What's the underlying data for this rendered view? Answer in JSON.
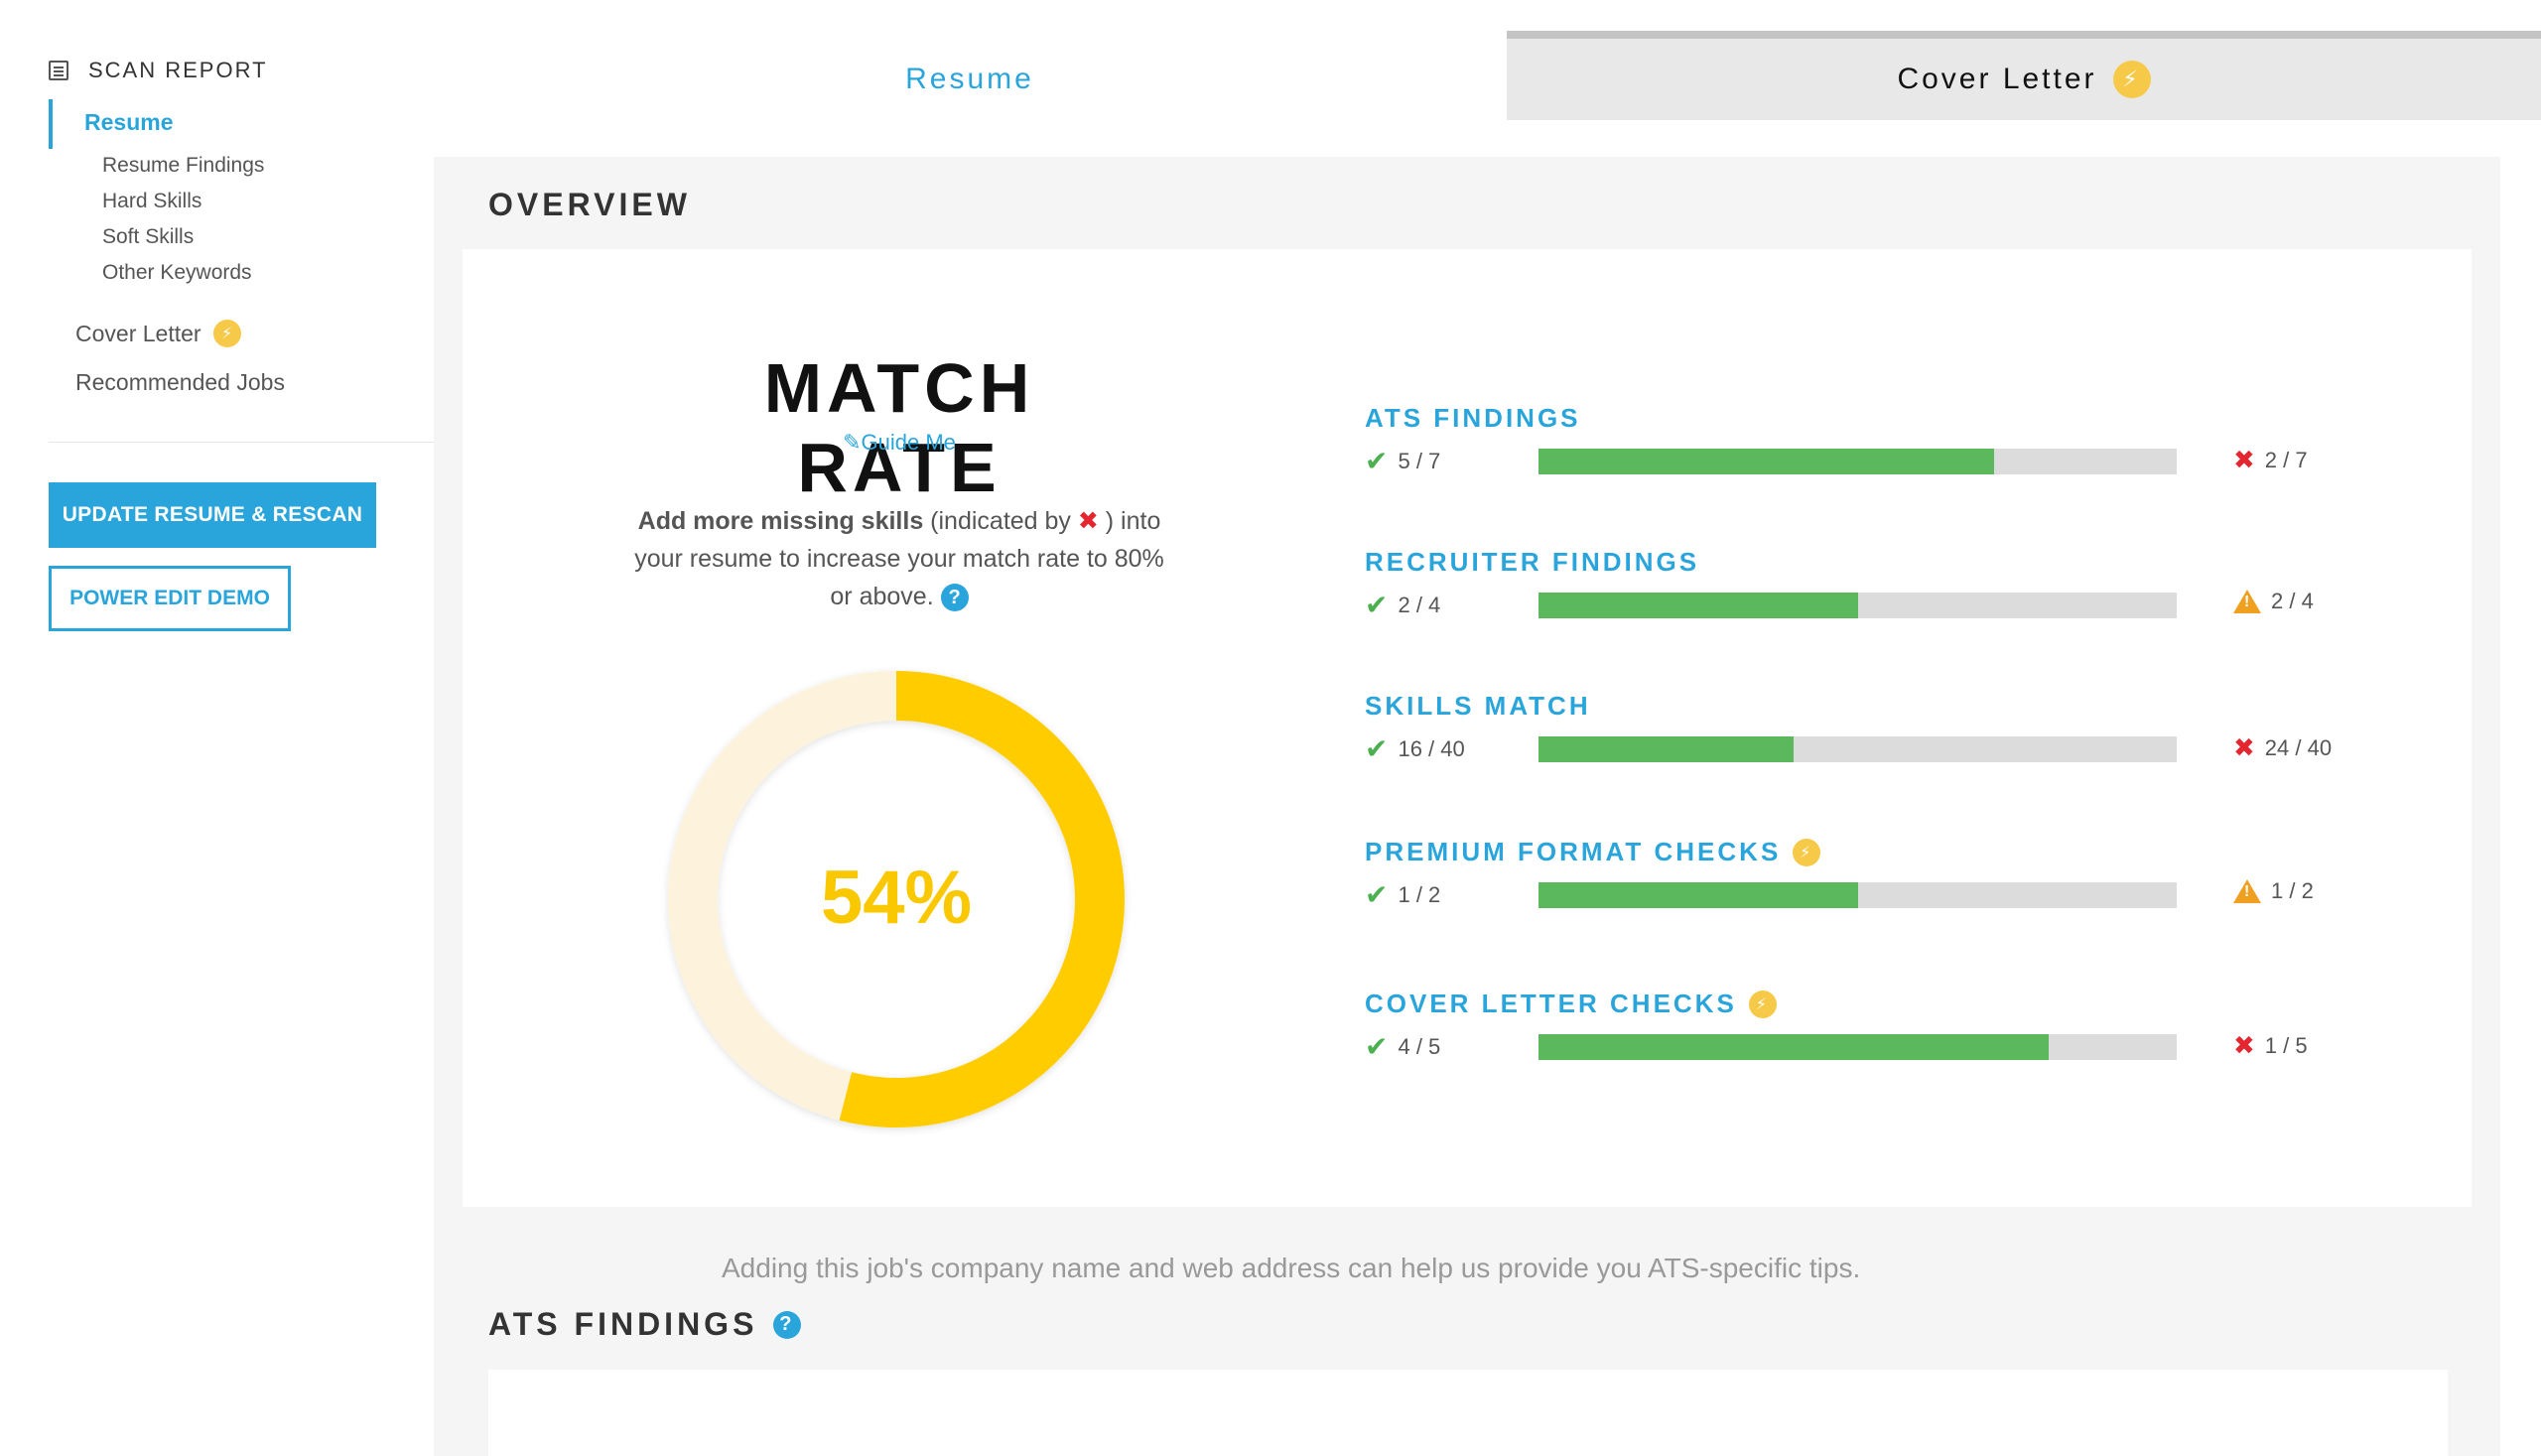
{
  "sidebar": {
    "header": "SCAN REPORT",
    "resume_label": "Resume",
    "sub_items": [
      "Resume Findings",
      "Hard Skills",
      "Soft Skills",
      "Other Keywords"
    ],
    "cover_letter_label": "Cover Letter",
    "recommended_jobs_label": "Recommended Jobs",
    "update_button": "UPDATE RESUME & RESCAN",
    "power_edit_button": "POWER EDIT DEMO"
  },
  "tabs": {
    "resume": "Resume",
    "cover_letter": "Cover Letter"
  },
  "overview": {
    "title": "OVERVIEW",
    "match_rate_title": "MATCH RATE",
    "guide_me": "Guide Me",
    "desc_bold": "Add more missing skills",
    "desc_part1": " (indicated by ",
    "desc_part2": " ) into your resume to increase your match rate to 80% or above. ",
    "match_rate_percent": 54,
    "match_rate_label": "54%",
    "colors": {
      "donut": "#ffcc00",
      "donut_track": "#fdf3dc",
      "accent": "#2aa5dc",
      "bar_fill": "#5cb85c"
    }
  },
  "findings": [
    {
      "title": "ATS FINDINGS",
      "pass": "5 / 7",
      "fail": "2 / 7",
      "fail_icon": "cross",
      "fraction": 0.714,
      "premium": false
    },
    {
      "title": "RECRUITER FINDINGS",
      "pass": "2 / 4",
      "fail": "2 / 4",
      "fail_icon": "warning",
      "fraction": 0.5,
      "premium": false
    },
    {
      "title": "SKILLS MATCH",
      "pass": "16 / 40",
      "fail": "24 / 40",
      "fail_icon": "cross",
      "fraction": 0.4,
      "premium": false
    },
    {
      "title": "PREMIUM FORMAT CHECKS",
      "pass": "1 / 2",
      "fail": "1 / 2",
      "fail_icon": "warning",
      "fraction": 0.5,
      "premium": true
    },
    {
      "title": "COVER LETTER CHECKS",
      "pass": "4 / 5",
      "fail": "1 / 5",
      "fail_icon": "cross",
      "fraction": 0.8,
      "premium": true
    }
  ],
  "ats_section": {
    "title": "ATS FINDINGS",
    "text": "Adding this job's company name and web address can help us provide you ATS-specific tips."
  }
}
